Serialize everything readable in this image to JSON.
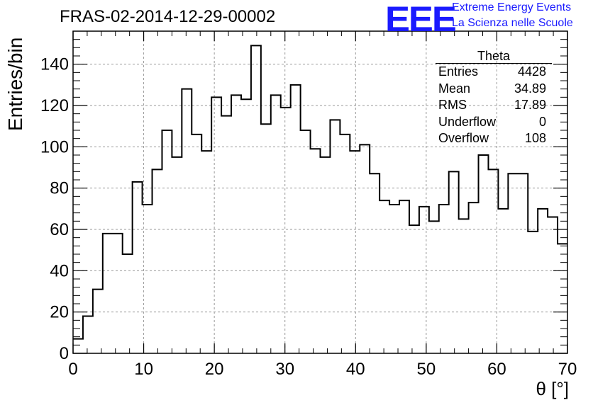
{
  "header": {
    "title": "FRAS-02-2014-12-29-00002",
    "logo_text": "EEE",
    "logo_line1": "Extreme Energy Events",
    "logo_line2": "La Scienza nelle Scuole"
  },
  "stats": {
    "name": "Theta",
    "rows": [
      {
        "label": "Entries",
        "value": "4428"
      },
      {
        "label": "Mean",
        "value": "34.89"
      },
      {
        "label": "RMS",
        "value": "17.89"
      },
      {
        "label": "Underflow",
        "value": "0"
      },
      {
        "label": "Overflow",
        "value": "108"
      }
    ]
  },
  "colors": {
    "logo": "#1a1aff",
    "line": "#000000",
    "grid": "#999999"
  },
  "chart_data": {
    "type": "histogram",
    "title": "FRAS-02-2014-12-29-00002",
    "xlabel": "θ [°]",
    "ylabel": "Entries/bin",
    "xlim": [
      0,
      70
    ],
    "ylim": [
      0,
      156
    ],
    "bin_width": 1.4,
    "grid": true,
    "x_ticks": [
      0,
      10,
      20,
      30,
      40,
      50,
      60,
      70
    ],
    "y_ticks": [
      0,
      20,
      40,
      60,
      80,
      100,
      120,
      140
    ],
    "values": [
      7,
      18,
      31,
      58,
      58,
      48,
      83,
      72,
      89,
      108,
      95,
      128,
      106,
      98,
      124,
      115,
      125,
      123,
      149,
      111,
      125,
      119,
      130,
      108,
      99,
      95,
      113,
      106,
      98,
      101,
      87,
      74,
      72,
      74,
      62,
      71,
      64,
      72,
      88,
      65,
      73,
      96,
      89,
      70,
      87,
      87,
      59,
      70,
      66,
      53
    ]
  }
}
